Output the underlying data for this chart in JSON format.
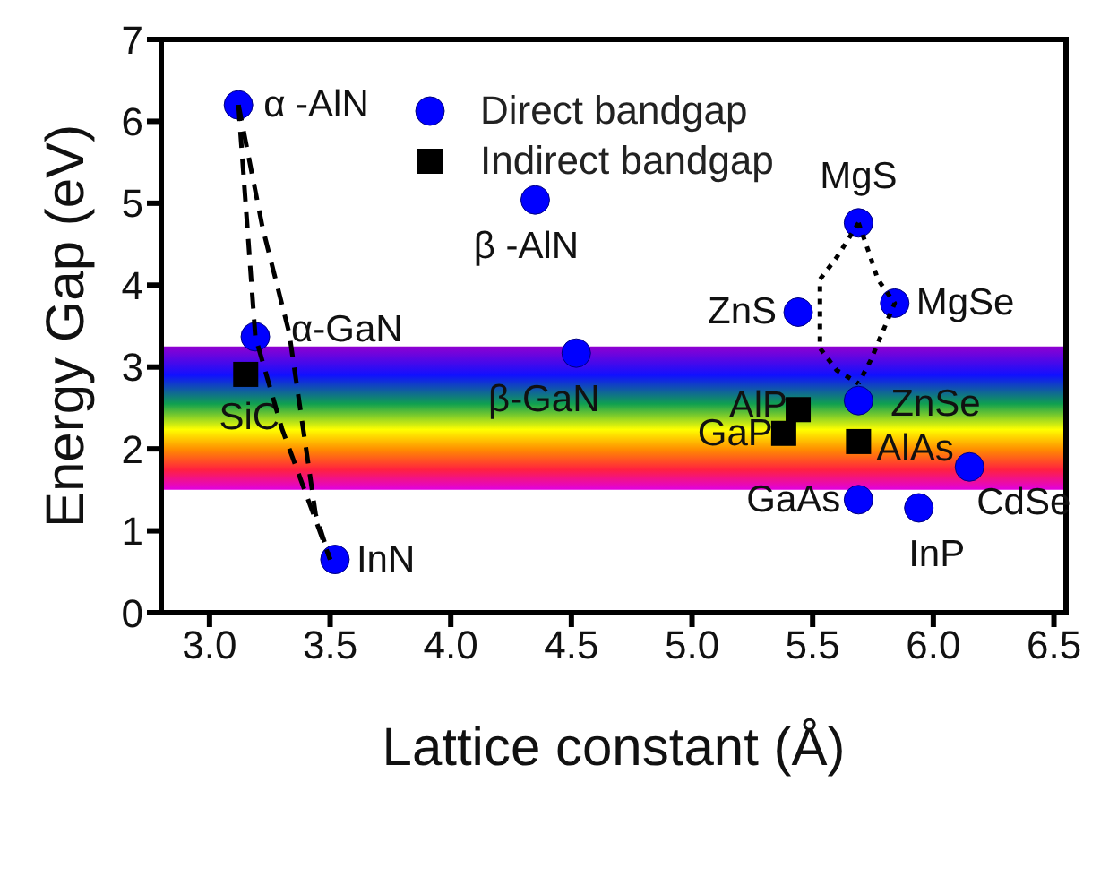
{
  "chart_data": {
    "type": "scatter",
    "xlabel": "Lattice constant (Å)",
    "ylabel": "Energy Gap (eV)",
    "xlim": [
      2.8,
      6.55
    ],
    "xticks": [
      {
        "value": 3,
        "label": "3.0"
      },
      3.5,
      {
        "value": 4,
        "label": "4.0"
      },
      4.5,
      {
        "value": 5,
        "label": "5.0"
      },
      5.5,
      {
        "value": 6,
        "label": "6.0"
      },
      6.5
    ],
    "ylim": [
      0,
      7
    ],
    "yticks": [
      0,
      1,
      2,
      3,
      4,
      5,
      6,
      7
    ],
    "grid": false,
    "legend": "top",
    "series": [
      {
        "name": "Direct bandgap",
        "color": "#0000ff",
        "marker": "circle",
        "x": [
          3.12,
          4.35,
          3.19,
          4.52,
          3.52,
          5.69,
          5.44,
          5.84,
          5.69,
          6.15,
          5.69,
          5.94
        ],
        "values": [
          6.2,
          5.04,
          3.37,
          3.17,
          0.65,
          4.76,
          3.67,
          3.78,
          2.59,
          1.78,
          1.38,
          1.28
        ]
      },
      {
        "name": "Indirect bandgap",
        "color": "#000000",
        "marker": "square",
        "x": [
          3.15,
          5.44,
          5.38,
          5.69
        ],
        "values": [
          2.91,
          2.48,
          2.19,
          2.09
        ]
      },
      {
        "type": "line",
        "color": "#000000",
        "line_style": "dashed",
        "marker": "none",
        "x": [
          3.12,
          3.19,
          3.3,
          3.5
        ],
        "values": [
          6.2,
          3.37,
          2.25,
          0.65
        ]
      },
      {
        "type": "line",
        "color": "#000000",
        "line_style": "dashed",
        "marker": "none",
        "x": [
          3.12,
          3.22,
          3.33,
          3.44,
          3.5
        ],
        "values": [
          6.2,
          4.7,
          3.42,
          1.2,
          0.65
        ]
      },
      {
        "type": "line",
        "color": "#000000",
        "line_style": "dotted",
        "marker": "none",
        "x": [
          5.69,
          5.6,
          5.53,
          5.53,
          5.6,
          5.69
        ],
        "values": [
          4.76,
          4.34,
          4.07,
          3.23,
          2.96,
          2.8
        ]
      },
      {
        "type": "line",
        "color": "#000000",
        "line_style": "dotted",
        "marker": "none",
        "x": [
          5.69,
          5.74,
          5.77,
          5.84,
          5.78,
          5.74,
          5.69
        ],
        "values": [
          4.76,
          4.34,
          4.07,
          3.78,
          3.36,
          3.08,
          2.8
        ]
      }
    ],
    "bands": [
      {
        "axis": "y",
        "from": 1.5,
        "to": 3.25
      }
    ],
    "annotations": [
      {
        "text": "α -AlN",
        "x": 3.12,
        "y": 6.2
      },
      {
        "text": "β -AlN",
        "x": 4.35,
        "y": 5.04
      },
      {
        "text": "α-GaN",
        "x": 3.19,
        "y": 3.37
      },
      {
        "text": "β-GaN",
        "x": 4.52,
        "y": 3.17
      },
      {
        "text": "InN",
        "x": 3.52,
        "y": 0.65
      },
      {
        "text": "MgS",
        "x": 5.69,
        "y": 4.76
      },
      {
        "text": "ZnS",
        "x": 5.44,
        "y": 3.67
      },
      {
        "text": "MgSe",
        "x": 5.84,
        "y": 3.78
      },
      {
        "text": "ZnSe",
        "x": 5.69,
        "y": 2.59
      },
      {
        "text": "CdSe",
        "x": 6.15,
        "y": 1.78
      },
      {
        "text": "GaAs",
        "x": 5.69,
        "y": 1.38
      },
      {
        "text": "InP",
        "x": 5.94,
        "y": 1.28
      },
      {
        "text": "SiC",
        "x": 3.15,
        "y": 2.91
      },
      {
        "text": "AlP",
        "x": 5.44,
        "y": 2.48
      },
      {
        "text": "GaP",
        "x": 5.38,
        "y": 2.19
      },
      {
        "text": "AlAs",
        "x": 5.69,
        "y": 2.09
      }
    ]
  }
}
